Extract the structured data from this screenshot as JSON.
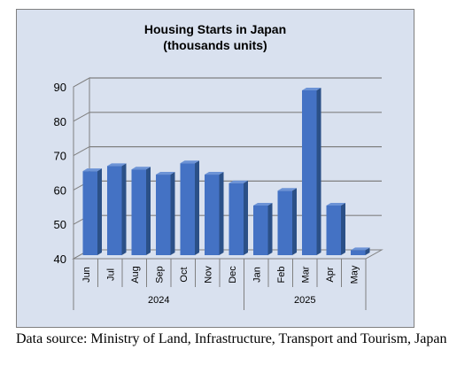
{
  "chart_data": {
    "type": "bar",
    "title_lines": [
      "Housing Starts in Japan",
      "(thousands units)"
    ],
    "categories": [
      "Jun",
      "Jul",
      "Aug",
      "Sep",
      "Oct",
      "Nov",
      "Dec",
      "Jan",
      "Feb",
      "Mar",
      "Apr",
      "May"
    ],
    "groups": [
      {
        "label": "2024",
        "count": 7
      },
      {
        "label": "2025",
        "count": 5
      }
    ],
    "values": [
      66.5,
      68.0,
      67.0,
      65.5,
      68.8,
      65.5,
      63.0,
      56.5,
      60.8,
      90.0,
      56.5,
      43.5
    ],
    "ylim": [
      40,
      90
    ],
    "yticks": [
      "40",
      "50",
      "60",
      "70",
      "80",
      "90"
    ],
    "grid": true,
    "legend": "none",
    "colors": {
      "plot_background": "#d9e1ef",
      "bar_front": "#4472c4",
      "bar_side": "#2b5087",
      "bar_top": "#6c93d6",
      "frame": "#808080",
      "gridline": "#808080"
    }
  },
  "source_note": "Data source: Ministry of Land, Infrastructure, Transport and Tourism, Japan"
}
